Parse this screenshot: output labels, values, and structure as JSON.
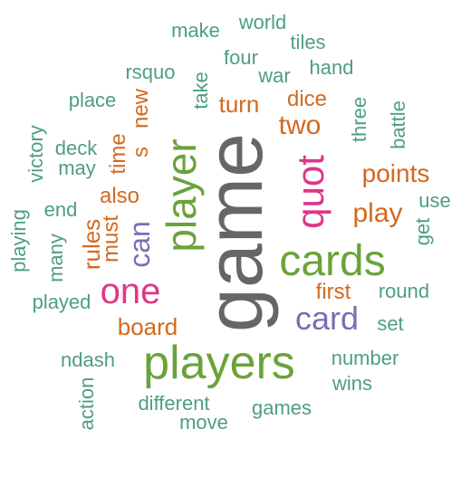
{
  "palette": {
    "green": "#4e9e7e",
    "olive": "#6aa33a",
    "orange": "#d2691e",
    "pink": "#e0358a",
    "purple": "#7870b4",
    "gray": "#666666"
  },
  "words": [
    {
      "text": "game",
      "color": "gray",
      "rot": true
    },
    {
      "text": "players",
      "color": "olive",
      "rot": false
    },
    {
      "text": "cards",
      "color": "olive",
      "rot": false
    },
    {
      "text": "player",
      "color": "olive",
      "rot": true
    },
    {
      "text": "quot",
      "color": "pink",
      "rot": true
    },
    {
      "text": "one",
      "color": "pink",
      "rot": false
    },
    {
      "text": "card",
      "color": "purple",
      "rot": false
    },
    {
      "text": "can",
      "color": "purple",
      "rot": true
    },
    {
      "text": "two",
      "color": "orange",
      "rot": false
    },
    {
      "text": "play",
      "color": "orange",
      "rot": false
    },
    {
      "text": "points",
      "color": "orange",
      "rot": false
    },
    {
      "text": "turn",
      "color": "orange",
      "rot": false
    },
    {
      "text": "dice",
      "color": "orange",
      "rot": false
    },
    {
      "text": "first",
      "color": "orange",
      "rot": false
    },
    {
      "text": "board",
      "color": "orange",
      "rot": false
    },
    {
      "text": "rules",
      "color": "orange",
      "rot": true
    },
    {
      "text": "must",
      "color": "orange",
      "rot": true
    },
    {
      "text": "also",
      "color": "orange",
      "rot": false
    },
    {
      "text": "time",
      "color": "orange",
      "rot": true
    },
    {
      "text": "new",
      "color": "orange",
      "rot": true
    },
    {
      "text": "s",
      "color": "orange",
      "rot": true
    },
    {
      "text": "make",
      "color": "green",
      "rot": false
    },
    {
      "text": "world",
      "color": "green",
      "rot": false
    },
    {
      "text": "tiles",
      "color": "green",
      "rot": false
    },
    {
      "text": "four",
      "color": "green",
      "rot": false
    },
    {
      "text": "rsquo",
      "color": "green",
      "rot": false
    },
    {
      "text": "war",
      "color": "green",
      "rot": false
    },
    {
      "text": "hand",
      "color": "green",
      "rot": false
    },
    {
      "text": "take",
      "color": "green",
      "rot": true
    },
    {
      "text": "place",
      "color": "green",
      "rot": false
    },
    {
      "text": "three",
      "color": "green",
      "rot": true
    },
    {
      "text": "battle",
      "color": "green",
      "rot": true
    },
    {
      "text": "victory",
      "color": "green",
      "rot": true
    },
    {
      "text": "deck",
      "color": "green",
      "rot": false
    },
    {
      "text": "may",
      "color": "green",
      "rot": false
    },
    {
      "text": "end",
      "color": "green",
      "rot": false
    },
    {
      "text": "use",
      "color": "green",
      "rot": false
    },
    {
      "text": "get",
      "color": "green",
      "rot": true
    },
    {
      "text": "playing",
      "color": "green",
      "rot": true
    },
    {
      "text": "many",
      "color": "green",
      "rot": true
    },
    {
      "text": "round",
      "color": "green",
      "rot": false
    },
    {
      "text": "played",
      "color": "green",
      "rot": false
    },
    {
      "text": "set",
      "color": "green",
      "rot": false
    },
    {
      "text": "ndash",
      "color": "green",
      "rot": false
    },
    {
      "text": "number",
      "color": "green",
      "rot": false
    },
    {
      "text": "wins",
      "color": "green",
      "rot": false
    },
    {
      "text": "different",
      "color": "green",
      "rot": false
    },
    {
      "text": "games",
      "color": "green",
      "rot": false
    },
    {
      "text": "action",
      "color": "green",
      "rot": true
    },
    {
      "text": "move",
      "color": "green",
      "rot": false
    }
  ]
}
